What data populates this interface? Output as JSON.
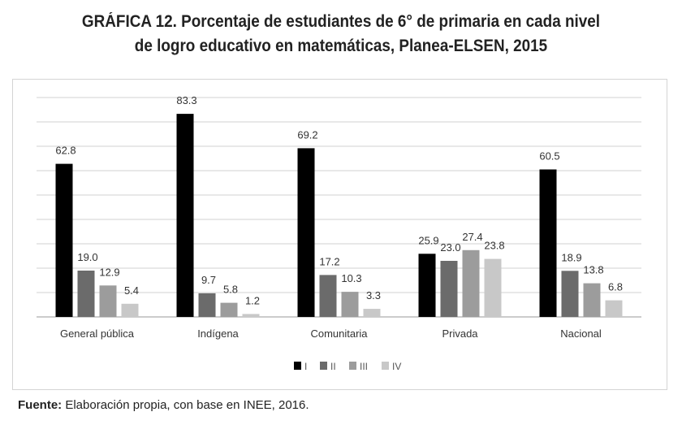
{
  "chart_data": {
    "type": "bar",
    "title_line1": "GRÁFICA 12. Porcentaje de estudiantes de 6° de primaria en cada nivel",
    "title_line2": "de logro educativo en matemáticas, Planea-ELSEN, 2015",
    "categories": [
      "General pública",
      "Indígena",
      "Comunitaria",
      "Privada",
      "Nacional"
    ],
    "series": [
      {
        "name": "I",
        "color": "#000000",
        "values": [
          62.8,
          83.3,
          69.2,
          25.9,
          60.5
        ]
      },
      {
        "name": "II",
        "color": "#6b6b6b",
        "values": [
          19.0,
          9.7,
          17.2,
          23.0,
          18.9
        ]
      },
      {
        "name": "III",
        "color": "#9c9c9c",
        "values": [
          12.9,
          5.8,
          10.3,
          27.4,
          13.8
        ]
      },
      {
        "name": "IV",
        "color": "#c8c8c8",
        "values": [
          5.4,
          1.2,
          3.3,
          23.8,
          6.8
        ]
      }
    ],
    "ylim": [
      0,
      90
    ],
    "ystep": 10,
    "grid": true,
    "legend": "bottom"
  },
  "source": {
    "label": "Fuente:",
    "text": " Elaboración propia, con base en INEE, 2016."
  }
}
